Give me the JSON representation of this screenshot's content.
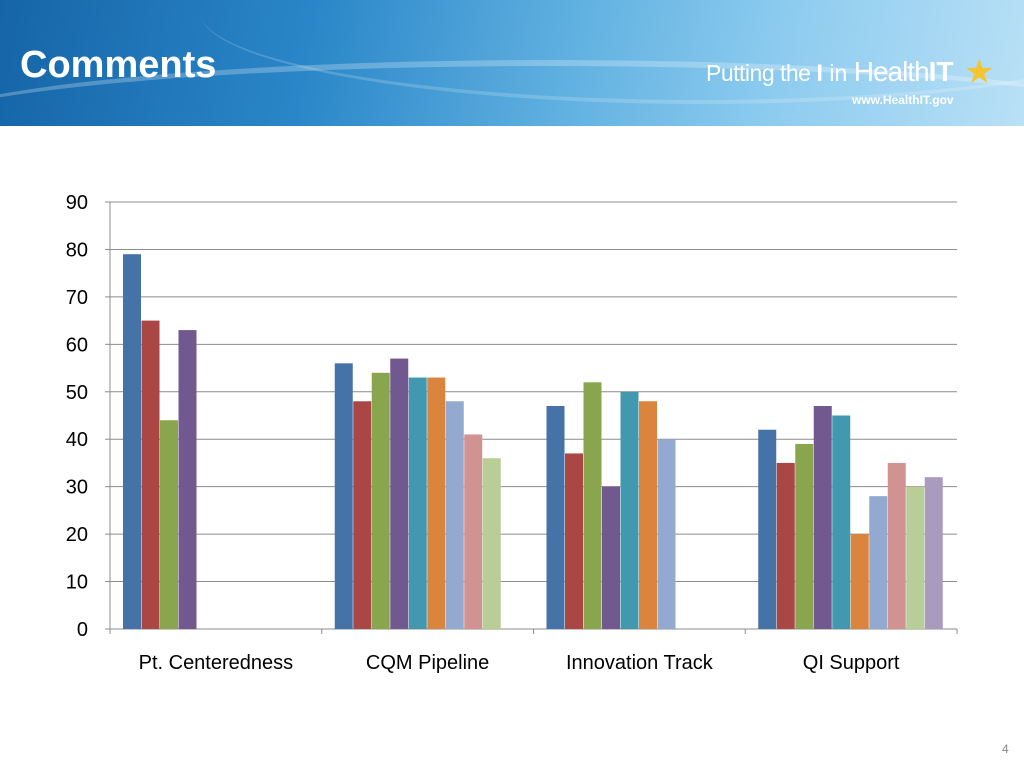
{
  "slide": {
    "title": "Comments",
    "page_number": "4"
  },
  "logo": {
    "text_part1": "Putting the ",
    "text_part2": "I",
    "text_part3": " in ",
    "text_part4": "Health",
    "text_part5": "IT",
    "url": "www.HealthIT.gov",
    "star_icon": "star-icon",
    "star_color": "#f4c531"
  },
  "chart_data": {
    "type": "bar",
    "categories": [
      "Pt. Centeredness",
      "CQM Pipeline",
      "Innovation Track",
      "QI Support"
    ],
    "ylim": [
      0,
      90
    ],
    "yticks": [
      0,
      10,
      20,
      30,
      40,
      50,
      60,
      70,
      80,
      90
    ],
    "grid": true,
    "legend": "none",
    "series": [
      {
        "color": "#4572a7",
        "values": [
          79,
          56,
          47,
          42
        ]
      },
      {
        "color": "#aa4643",
        "values": [
          65,
          48,
          37,
          35
        ]
      },
      {
        "color": "#89a54e",
        "values": [
          44,
          54,
          52,
          39
        ]
      },
      {
        "color": "#71588f",
        "values": [
          63,
          57,
          30,
          47
        ]
      },
      {
        "color": "#4198af",
        "values": [
          null,
          53,
          50,
          45
        ]
      },
      {
        "color": "#db843d",
        "values": [
          null,
          53,
          48,
          20
        ]
      },
      {
        "color": "#93a9cf",
        "values": [
          null,
          48,
          40,
          28
        ]
      },
      {
        "color": "#d19392",
        "values": [
          null,
          41,
          null,
          35
        ]
      },
      {
        "color": "#b9cd96",
        "values": [
          null,
          36,
          null,
          30
        ]
      },
      {
        "color": "#a99bbd",
        "values": [
          null,
          null,
          null,
          32
        ]
      }
    ]
  }
}
